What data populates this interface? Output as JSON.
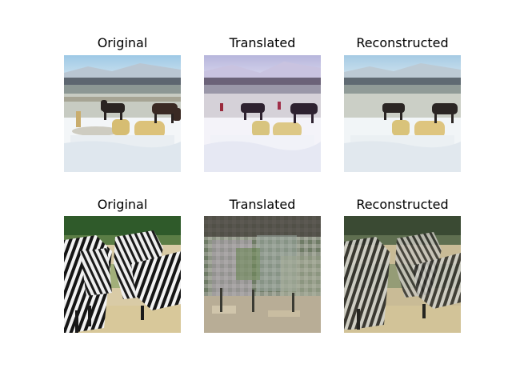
{
  "figure": {
    "rows": [
      {
        "panels": [
          {
            "title": "Original",
            "subject": "horses-snow-original"
          },
          {
            "title": "Translated",
            "subject": "horses-snow-translated"
          },
          {
            "title": "Reconstructed",
            "subject": "horses-snow-reconstructed"
          }
        ]
      },
      {
        "panels": [
          {
            "title": "Original",
            "subject": "zebras-original"
          },
          {
            "title": "Translated",
            "subject": "zebras-translated"
          },
          {
            "title": "Reconstructed",
            "subject": "zebras-reconstructed"
          }
        ]
      }
    ]
  }
}
